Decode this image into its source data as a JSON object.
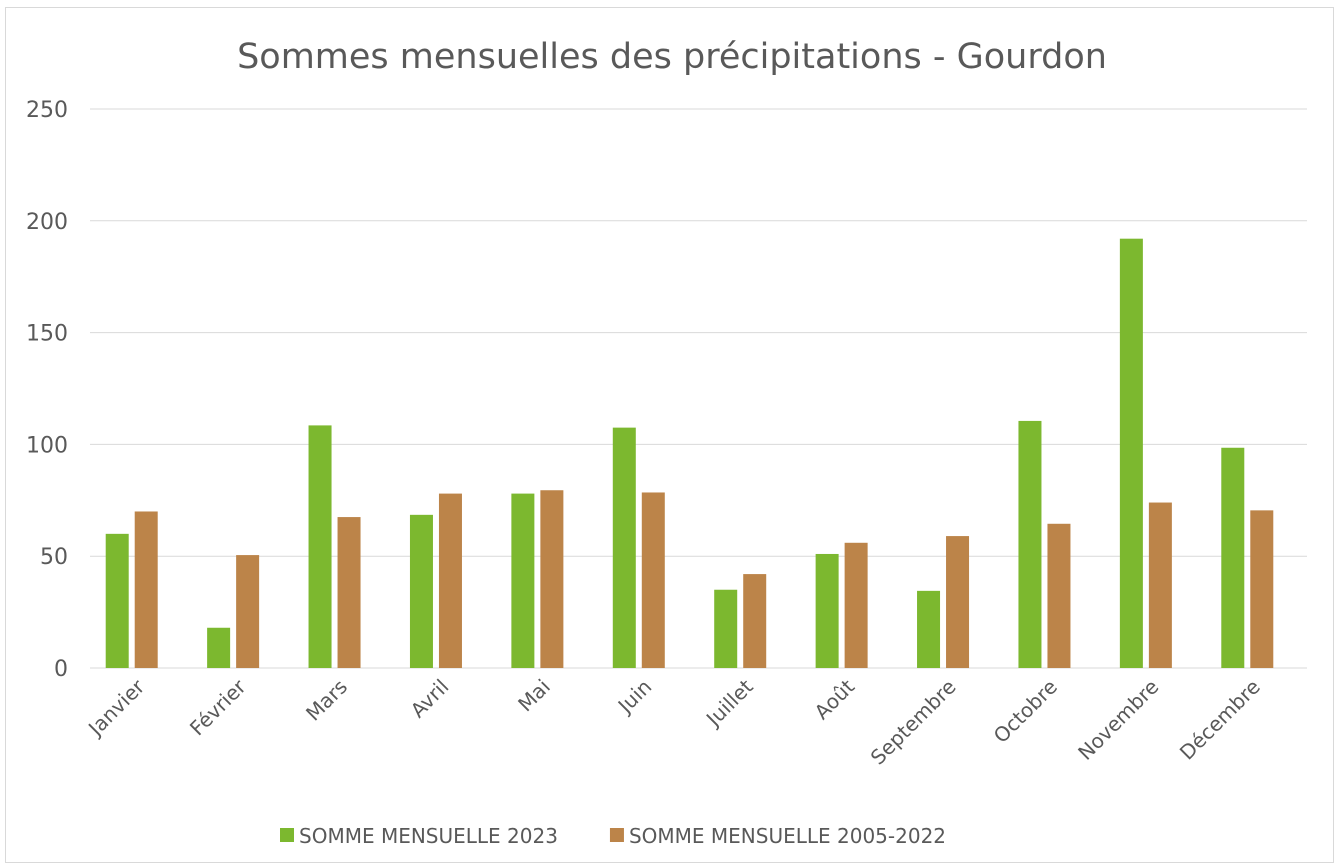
{
  "chart_data": {
    "type": "bar",
    "title": "Sommes mensuelles des précipitations - Gourdon",
    "categories": [
      "Janvier",
      "Février",
      "Mars",
      "Avril",
      "Mai",
      "Juin",
      "Juillet",
      "Août",
      "Septembre",
      "Octobre",
      "Novembre",
      "Décembre"
    ],
    "series": [
      {
        "name": "SOMME MENSUELLE 2023",
        "color": "#7cb82f",
        "values": [
          60,
          18,
          108.5,
          68.5,
          78,
          107.5,
          35,
          51,
          34.5,
          110.5,
          192,
          98.5
        ]
      },
      {
        "name": "SOMME MENSUELLE 2005-2022",
        "color": "#bc8449",
        "values": [
          70,
          50.5,
          67.5,
          78,
          79.5,
          78.5,
          42,
          56,
          59,
          64.5,
          74,
          70.5
        ]
      }
    ],
    "ylim": [
      0,
      250
    ],
    "yticks": [
      0,
      50,
      100,
      150,
      200,
      250
    ],
    "grid": true,
    "legend": "bottom"
  }
}
